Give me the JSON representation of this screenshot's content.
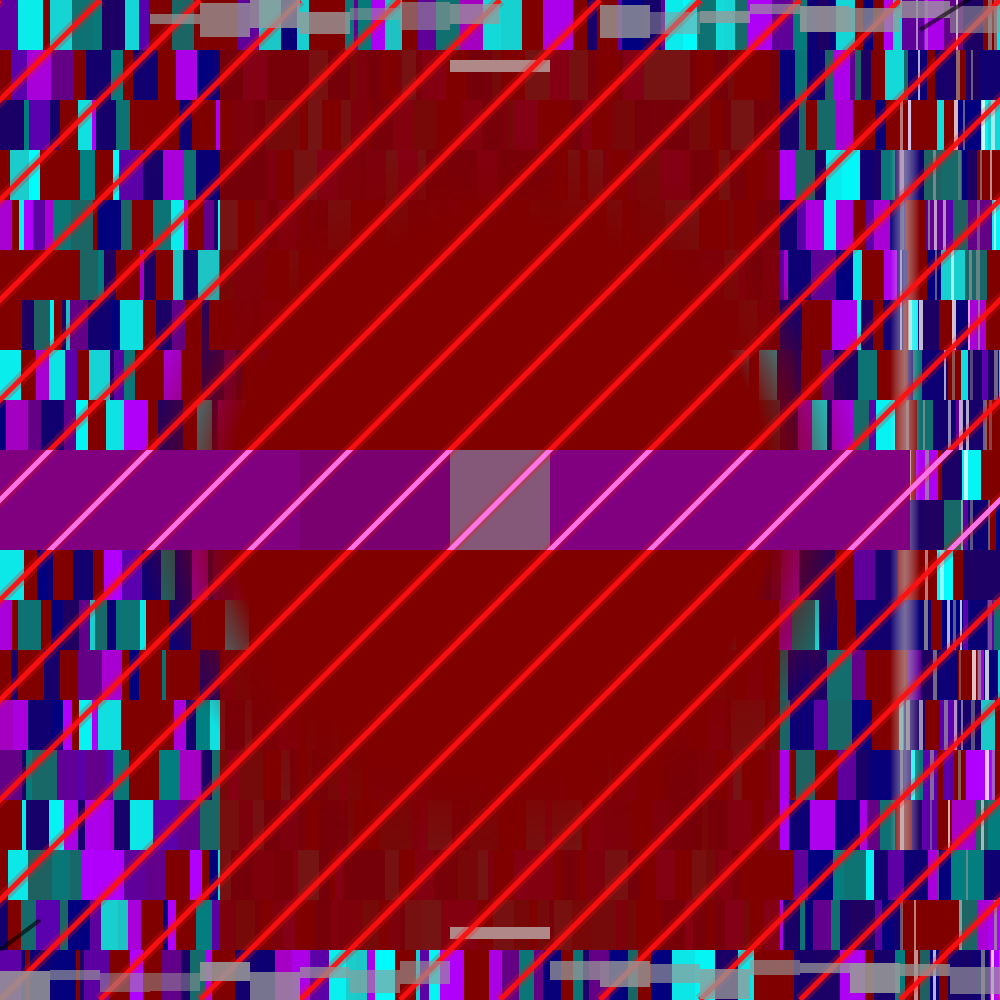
{
  "palette": {
    "base_red": "#800000",
    "stripe_red": "#ff1010",
    "band_magenta": "#800080",
    "center_mauve": "#85587a",
    "navy": "#000080",
    "teal": "#008080",
    "cyan": "#00ffff",
    "purple": "#5a00b0",
    "violet": "#b000ff",
    "gray": "#999999",
    "white": "#ffffff",
    "pink": "#ff80ff"
  },
  "pattern": {
    "kind": "abstract glitch artwork",
    "diagonal_stripes": true,
    "horizontal_band": true,
    "center_square": true,
    "side_pillars": true
  }
}
